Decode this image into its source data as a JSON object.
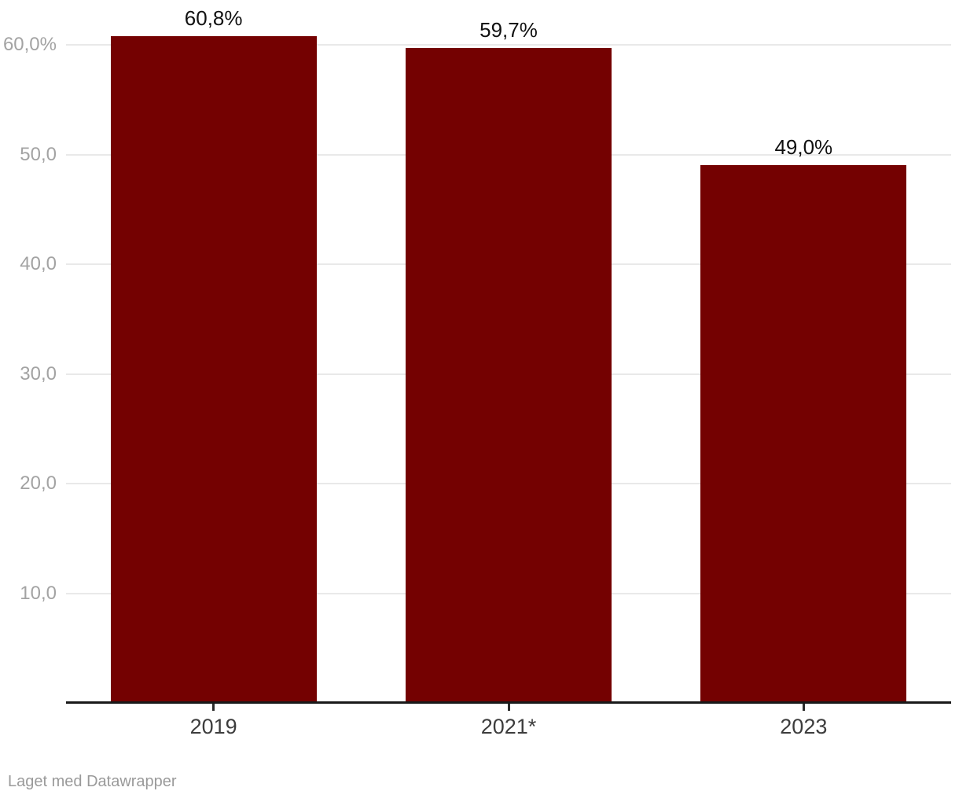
{
  "chart_data": {
    "type": "bar",
    "categories": [
      "2019",
      "2021*",
      "2023"
    ],
    "values": [
      60.8,
      59.7,
      49.0
    ],
    "value_labels": [
      "60,8%",
      "59,7%",
      "49,0%"
    ],
    "y_ticks": [
      {
        "value": 10,
        "label": "10,0"
      },
      {
        "value": 20,
        "label": "20,0"
      },
      {
        "value": 30,
        "label": "30,0"
      },
      {
        "value": 40,
        "label": "40,0"
      },
      {
        "value": 50,
        "label": "50,0"
      },
      {
        "value": 60,
        "label": "60,0%"
      }
    ],
    "ylim": [
      0,
      64
    ],
    "grid": true,
    "legend": "none",
    "title": "",
    "xlabel": "",
    "ylabel": ""
  },
  "colors": {
    "bar": "#740101",
    "gridline": "#e9e9e9",
    "axis_line": "#191919",
    "y_tick_label": "#a3a3a3",
    "x_tick_label": "#3d3d3d",
    "value_label": "#111111",
    "footer_text": "#9a9a9a",
    "background": "#ffffff"
  },
  "footer": {
    "credit": "Laget med Datawrapper"
  }
}
